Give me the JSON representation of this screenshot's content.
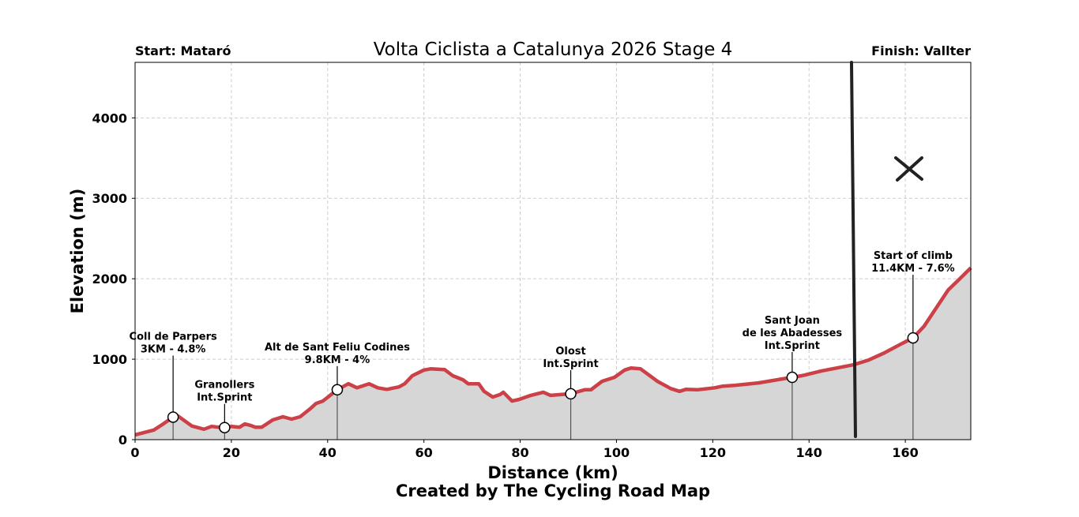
{
  "chart_data": {
    "type": "area",
    "title": "Volta Ciclista a Catalunya 2026 Stage 4",
    "start_label": "Start: Mataró",
    "finish_label": "Finish: Vallter",
    "xlabel": "Distance (km)",
    "ylabel": "Elevation (m)",
    "footer": "Created by The Cycling Road Map",
    "xlim": [
      0,
      173.6
    ],
    "ylim": [
      0,
      4690
    ],
    "xticks": [
      0,
      20,
      40,
      60,
      80,
      100,
      120,
      140,
      160
    ],
    "yticks": [
      0,
      1000,
      2000,
      3000,
      4000
    ],
    "grid": true,
    "colors": {
      "line": "#cc4048",
      "fill": "#d6d6d6",
      "grid": "#cccccc",
      "overlay": "#222222"
    },
    "x": [
      0,
      3.9,
      5.6,
      7.9,
      8.9,
      11.8,
      14.3,
      15.9,
      17.9,
      20,
      21.7,
      22.8,
      24.1,
      25,
      26.3,
      28.6,
      30.7,
      32.5,
      34.3,
      36.3,
      37.6,
      39,
      42,
      44.3,
      46.1,
      48.6,
      50.4,
      52.3,
      54.8,
      56,
      57.6,
      60,
      61.4,
      64.3,
      66,
      68.1,
      69.2,
      71.4,
      72.5,
      74.3,
      75.8,
      76.5,
      78.3,
      79.8,
      82.2,
      84.8,
      86.3,
      90.5,
      93.4,
      94.7,
      97,
      99.6,
      101.7,
      103,
      105,
      108.5,
      111.3,
      113.1,
      114.4,
      116.8,
      120.4,
      122.1,
      124.5,
      129.5,
      134.4,
      136.5,
      138.5,
      142.6,
      149.2,
      152.4,
      155.7,
      159,
      161.6,
      163.9,
      166.4,
      168.9,
      171.3,
      173.6
    ],
    "y": [
      60,
      120,
      185,
      280,
      295,
      170,
      130,
      165,
      150,
      165,
      155,
      195,
      175,
      155,
      155,
      245,
      285,
      255,
      285,
      380,
      450,
      480,
      620,
      695,
      645,
      695,
      645,
      625,
      655,
      695,
      795,
      865,
      880,
      870,
      795,
      745,
      695,
      695,
      600,
      530,
      560,
      590,
      480,
      500,
      550,
      590,
      550,
      570,
      620,
      620,
      725,
      775,
      865,
      890,
      880,
      725,
      635,
      600,
      625,
      620,
      645,
      665,
      675,
      705,
      755,
      775,
      795,
      855,
      930,
      990,
      1080,
      1185,
      1265,
      1410,
      1635,
      1860,
      2000,
      2135
    ],
    "annotations": [
      {
        "text": [
          "Coll de Parpers",
          "3KM - 4.8%"
        ],
        "x": 7.9,
        "y": 280
      },
      {
        "text": [
          "Granollers",
          "Int.Sprint"
        ],
        "x": 18.6,
        "y": 150
      },
      {
        "text": [
          "Alt de Sant Feliu Codines",
          "9.8KM - 4%"
        ],
        "x": 42,
        "y": 620
      },
      {
        "text": [
          "Olost",
          "Int.Sprint"
        ],
        "x": 90.5,
        "y": 570
      },
      {
        "text": [
          "Sant Joan",
          "de les Abadesses",
          "Int.Sprint"
        ],
        "x": 136.5,
        "y": 775
      },
      {
        "text": [
          "Start of climb",
          "11.4KM - 7.6%"
        ],
        "x": 161.6,
        "y": 1265
      }
    ]
  }
}
